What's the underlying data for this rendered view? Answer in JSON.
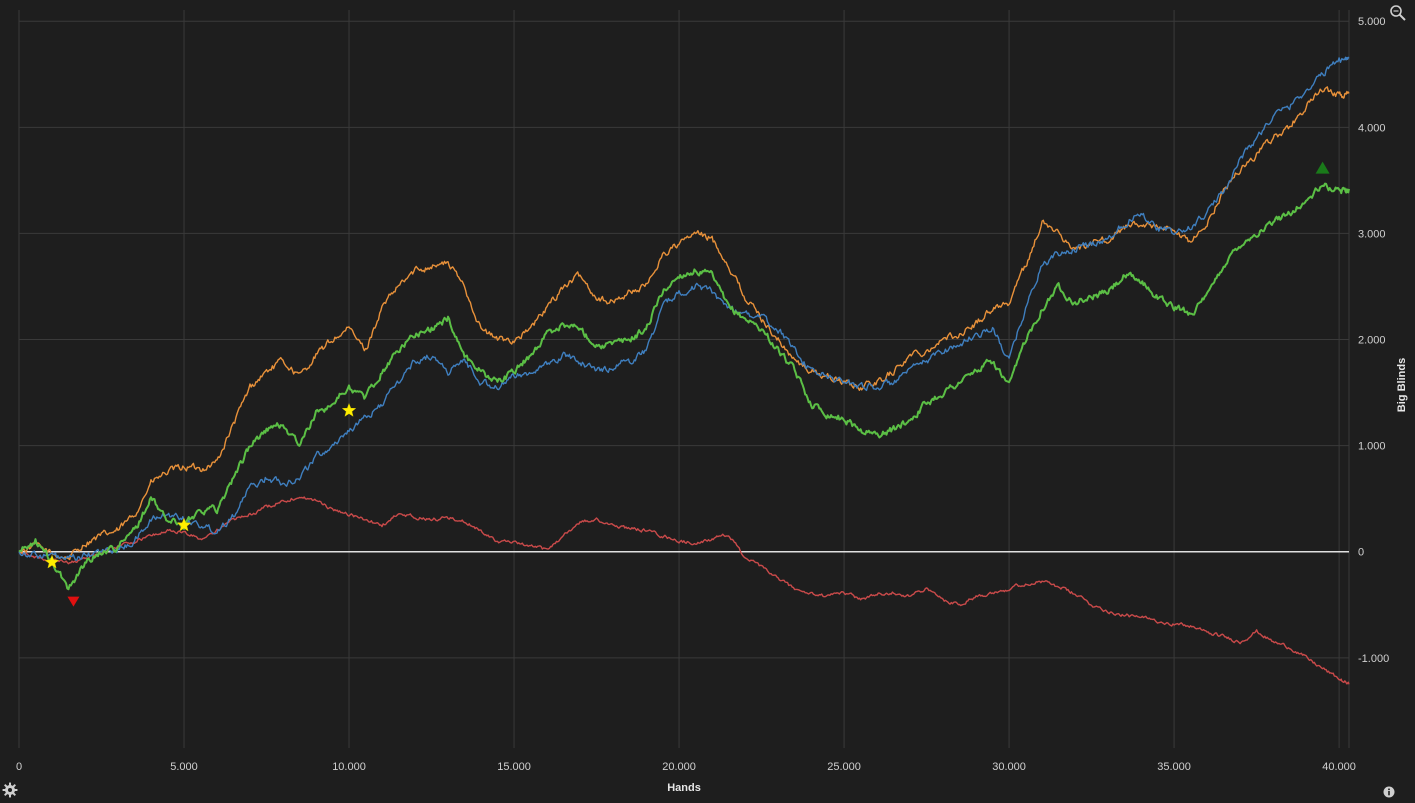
{
  "chart_data": {
    "type": "line",
    "xlabel": "Hands",
    "ylabel": "Big Blinds",
    "xlim": [
      0,
      40300
    ],
    "ylim": [
      -1850,
      5200
    ],
    "x_ticks": [
      0,
      5000,
      10000,
      15000,
      20000,
      25000,
      30000,
      35000,
      40000
    ],
    "x_tick_labels": [
      "0",
      "5.000",
      "10.000",
      "15.000",
      "20.000",
      "25.000",
      "30.000",
      "35.000",
      "40.000"
    ],
    "y_ticks": [
      -1000,
      0,
      1000,
      2000,
      3000,
      4000,
      5000
    ],
    "y_tick_labels": [
      "-1.000",
      "0",
      "1.000",
      "2.000",
      "3.000",
      "4.000",
      "5.000"
    ],
    "grid": true,
    "series": [
      {
        "color": "#e8913a",
        "x": [
          0,
          500,
          1000,
          1500,
          2000,
          2500,
          3000,
          3500,
          4000,
          4500,
          5000,
          5500,
          6000,
          6500,
          7000,
          7500,
          8000,
          8500,
          9000,
          9500,
          10000,
          10500,
          11000,
          11500,
          12000,
          12500,
          13000,
          13500,
          14000,
          14500,
          15000,
          15500,
          16000,
          16500,
          17000,
          17500,
          18000,
          18500,
          19000,
          19500,
          20000,
          20500,
          21000,
          21500,
          22000,
          22500,
          23000,
          23500,
          24000,
          24500,
          25000,
          25500,
          26000,
          26500,
          27000,
          27500,
          28000,
          28500,
          29000,
          29500,
          30000,
          30500,
          31000,
          31500,
          32000,
          32500,
          33000,
          33500,
          34000,
          34500,
          35000,
          35500,
          36000,
          36500,
          37000,
          37500,
          38000,
          38500,
          39000,
          39500,
          40000,
          40300
        ],
        "y": [
          0,
          60,
          -20,
          -60,
          80,
          150,
          200,
          350,
          650,
          750,
          800,
          780,
          850,
          1200,
          1550,
          1700,
          1800,
          1650,
          1850,
          2000,
          2100,
          1900,
          2300,
          2500,
          2650,
          2700,
          2720,
          2500,
          2100,
          2000,
          2000,
          2100,
          2300,
          2500,
          2600,
          2400,
          2350,
          2450,
          2500,
          2800,
          2900,
          3000,
          2950,
          2700,
          2400,
          2200,
          2000,
          1800,
          1700,
          1650,
          1600,
          1550,
          1600,
          1700,
          1850,
          1900,
          2000,
          2050,
          2150,
          2300,
          2350,
          2700,
          3100,
          3000,
          2850,
          2900,
          2950,
          3050,
          3100,
          3050,
          3000,
          2900,
          3100,
          3400,
          3600,
          3750,
          3900,
          4000,
          4200,
          4350,
          4300,
          4320
        ]
      },
      {
        "color": "#3f7fbf",
        "x": [
          0,
          500,
          1000,
          1500,
          2000,
          2500,
          3000,
          3500,
          4000,
          4500,
          5000,
          5500,
          6000,
          6500,
          7000,
          7500,
          8000,
          8500,
          9000,
          9500,
          10000,
          10500,
          11000,
          11500,
          12000,
          12500,
          13000,
          13500,
          14000,
          14500,
          15000,
          15500,
          16000,
          16500,
          17000,
          17500,
          18000,
          18500,
          19000,
          19500,
          20000,
          20500,
          21000,
          21500,
          22000,
          22500,
          23000,
          23500,
          24000,
          24500,
          25000,
          25500,
          26000,
          26500,
          27000,
          27500,
          28000,
          28500,
          29000,
          29500,
          30000,
          30500,
          31000,
          31500,
          32000,
          32500,
          33000,
          33500,
          34000,
          34500,
          35000,
          35500,
          36000,
          36500,
          37000,
          37500,
          38000,
          38500,
          39000,
          39500,
          40000,
          40300
        ],
        "y": [
          0,
          -30,
          -40,
          -80,
          -40,
          0,
          20,
          100,
          300,
          350,
          320,
          250,
          200,
          350,
          600,
          700,
          650,
          700,
          900,
          1000,
          1150,
          1250,
          1400,
          1600,
          1800,
          1850,
          1700,
          1800,
          1600,
          1550,
          1650,
          1700,
          1750,
          1850,
          1800,
          1700,
          1750,
          1800,
          1900,
          2300,
          2450,
          2500,
          2450,
          2300,
          2250,
          2200,
          2100,
          1900,
          1700,
          1650,
          1600,
          1570,
          1550,
          1600,
          1700,
          1800,
          1900,
          1950,
          2050,
          2100,
          1800,
          2300,
          2700,
          2800,
          2850,
          2900,
          2950,
          3100,
          3200,
          3050,
          3000,
          3050,
          3200,
          3400,
          3700,
          3900,
          4100,
          4200,
          4350,
          4500,
          4650,
          4650
        ]
      },
      {
        "color": "#5bbf45",
        "x": [
          0,
          500,
          1000,
          1500,
          2000,
          2500,
          3000,
          3500,
          4000,
          4500,
          5000,
          5500,
          6000,
          6500,
          7000,
          7500,
          8000,
          8500,
          9000,
          9500,
          10000,
          10500,
          11000,
          11500,
          12000,
          12500,
          13000,
          13500,
          14000,
          14500,
          15000,
          15500,
          16000,
          16500,
          17000,
          17500,
          18000,
          18500,
          19000,
          19500,
          20000,
          20500,
          21000,
          21500,
          22000,
          22500,
          23000,
          23500,
          24000,
          24500,
          25000,
          25500,
          26000,
          26500,
          27000,
          27500,
          28000,
          28500,
          29000,
          29500,
          30000,
          30500,
          31000,
          31500,
          32000,
          32500,
          33000,
          33500,
          34000,
          34500,
          35000,
          35500,
          36000,
          36500,
          37000,
          37500,
          38000,
          38500,
          39000,
          39500,
          40000,
          40300
        ],
        "y": [
          0,
          100,
          -100,
          -350,
          -100,
          0,
          50,
          200,
          500,
          300,
          250,
          400,
          400,
          700,
          1000,
          1150,
          1200,
          1000,
          1300,
          1400,
          1550,
          1450,
          1700,
          1900,
          2050,
          2100,
          2200,
          1850,
          1700,
          1600,
          1700,
          1850,
          2050,
          2150,
          2100,
          1950,
          1950,
          2000,
          2100,
          2450,
          2600,
          2650,
          2600,
          2300,
          2200,
          2100,
          1900,
          1700,
          1400,
          1300,
          1250,
          1150,
          1100,
          1150,
          1250,
          1400,
          1500,
          1600,
          1700,
          1800,
          1550,
          2000,
          2300,
          2500,
          2350,
          2400,
          2450,
          2600,
          2550,
          2400,
          2300,
          2250,
          2400,
          2700,
          2900,
          3000,
          3100,
          3200,
          3300,
          3450,
          3400,
          3420
        ]
      },
      {
        "color": "#c94a4a",
        "x": [
          0,
          500,
          1000,
          1500,
          2000,
          2500,
          3000,
          3500,
          4000,
          4500,
          5000,
          5500,
          6000,
          6500,
          7000,
          7500,
          8000,
          8500,
          9000,
          9500,
          10000,
          10500,
          11000,
          11500,
          12000,
          12500,
          13000,
          13500,
          14000,
          14500,
          15000,
          15500,
          16000,
          16500,
          17000,
          17500,
          18000,
          18500,
          19000,
          19500,
          20000,
          20500,
          21000,
          21500,
          22000,
          22500,
          23000,
          23500,
          24000,
          24500,
          25000,
          25500,
          26000,
          26500,
          27000,
          27500,
          28000,
          28500,
          29000,
          29500,
          30000,
          30500,
          31000,
          31500,
          32000,
          32500,
          33000,
          33500,
          34000,
          34500,
          35000,
          35500,
          36000,
          36500,
          37000,
          37500,
          38000,
          38500,
          39000,
          39500,
          40000,
          40300
        ],
        "y": [
          0,
          -50,
          -80,
          -100,
          -60,
          0,
          50,
          100,
          150,
          200,
          180,
          120,
          200,
          300,
          350,
          420,
          480,
          520,
          480,
          400,
          350,
          300,
          250,
          350,
          330,
          300,
          320,
          280,
          200,
          100,
          80,
          50,
          20,
          150,
          280,
          300,
          250,
          220,
          200,
          150,
          100,
          80,
          120,
          160,
          -50,
          -150,
          -250,
          -350,
          -400,
          -420,
          -380,
          -450,
          -400,
          -380,
          -420,
          -350,
          -450,
          -500,
          -420,
          -380,
          -350,
          -300,
          -280,
          -330,
          -400,
          -500,
          -560,
          -600,
          -620,
          -650,
          -680,
          -700,
          -760,
          -800,
          -850,
          -750,
          -850,
          -900,
          -1000,
          -1100,
          -1200,
          -1250
        ]
      }
    ],
    "markers": [
      {
        "type": "star",
        "color": "#ffee00",
        "x": 1000,
        "y": -100
      },
      {
        "type": "star",
        "color": "#ffee00",
        "x": 5000,
        "y": 250
      },
      {
        "type": "star",
        "color": "#ffee00",
        "x": 10000,
        "y": 1330
      },
      {
        "type": "triangle-down",
        "color": "#e01010",
        "x": 1650,
        "y": -470
      },
      {
        "type": "triangle-up",
        "color": "#1a7a1a",
        "x": 39500,
        "y": 3620
      }
    ]
  },
  "icons": {
    "zoom": "magnifier-icon",
    "settings": "gear-icon",
    "info": "info-icon"
  }
}
